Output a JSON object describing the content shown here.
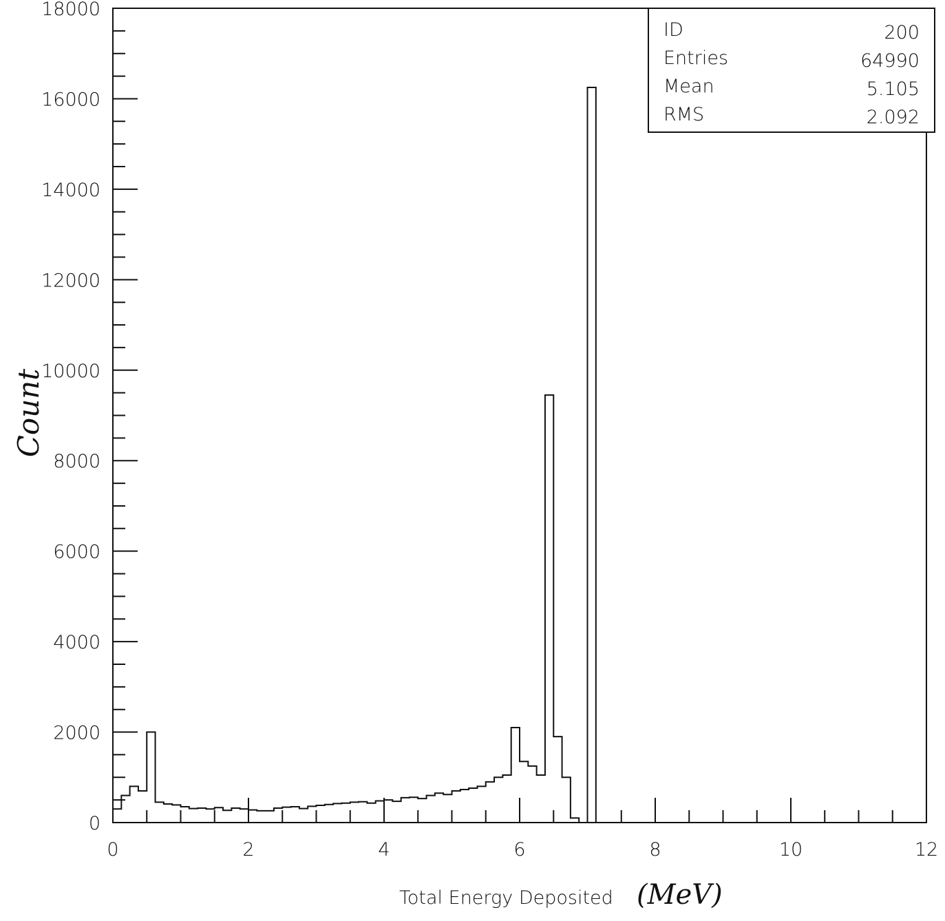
{
  "chart_data": {
    "type": "bar",
    "title": "",
    "xlabel": "Total Energy Deposited",
    "xlabel_unit": "(MeV)",
    "ylabel": "Count",
    "xlim": [
      0,
      12
    ],
    "ylim": [
      0,
      18000
    ],
    "x_ticks": [
      "0",
      "2",
      "4",
      "6",
      "8",
      "10",
      "12"
    ],
    "y_ticks": [
      "0",
      "2000",
      "4000",
      "6000",
      "8000",
      "10000",
      "12000",
      "14000",
      "16000",
      "18000"
    ],
    "bin_width": 0.125,
    "bins_start": 0,
    "values": [
      300,
      600,
      800,
      700,
      2000,
      450,
      410,
      390,
      350,
      310,
      320,
      300,
      330,
      270,
      320,
      300,
      280,
      260,
      260,
      320,
      340,
      350,
      310,
      360,
      380,
      400,
      420,
      430,
      450,
      460,
      430,
      480,
      500,
      470,
      550,
      560,
      530,
      600,
      650,
      620,
      700,
      730,
      760,
      800,
      900,
      1000,
      1050,
      2100,
      1350,
      1250,
      1050,
      9450,
      1900,
      1000,
      100,
      0,
      16250,
      0
    ],
    "stats": [
      {
        "label": "ID",
        "value": "200"
      },
      {
        "label": "Entries",
        "value": "64990"
      },
      {
        "label": "Mean",
        "value": "5.105"
      },
      {
        "label": "RMS",
        "value": "2.092"
      }
    ]
  }
}
